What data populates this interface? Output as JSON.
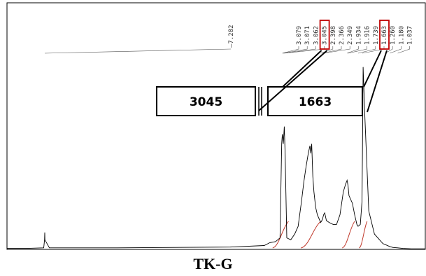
{
  "caption": "TK-G",
  "chart_data": {
    "type": "line",
    "title": "TK-G",
    "xlabel": "",
    "ylabel": "",
    "x_reversed": true,
    "xlim": [
      7.95,
      0.55
    ],
    "ylim": [
      0,
      1
    ],
    "series": [
      {
        "name": "",
        "x": [
          7.95,
          7.6,
          7.3,
          7.285,
          7.282,
          7.279,
          7.2,
          6.0,
          4.0,
          3.4,
          3.3,
          3.2,
          3.12,
          3.09,
          3.079,
          3.071,
          3.062,
          3.045,
          3.03,
          3.0,
          2.93,
          2.86,
          2.8,
          2.74,
          2.7,
          2.66,
          2.62,
          2.59,
          2.575,
          2.56,
          2.54,
          2.52,
          2.49,
          2.46,
          2.4,
          2.38,
          2.366,
          2.349,
          2.33,
          2.3,
          2.25,
          2.18,
          2.12,
          2.06,
          2.0,
          1.96,
          1.934,
          1.916,
          1.9,
          1.84,
          1.8,
          1.76,
          1.739,
          1.7,
          1.67,
          1.663,
          1.65,
          1.62,
          1.55,
          1.45,
          1.3,
          1.26,
          1.18,
          1.12,
          1.037,
          0.95,
          0.8,
          0.55
        ],
        "y": [
          0.005,
          0.005,
          0.008,
          0.05,
          0.088,
          0.05,
          0.008,
          0.008,
          0.012,
          0.02,
          0.035,
          0.04,
          0.06,
          0.55,
          0.6,
          0.58,
          0.55,
          0.64,
          0.5,
          0.06,
          0.05,
          0.08,
          0.12,
          0.25,
          0.35,
          0.43,
          0.5,
          0.54,
          0.5,
          0.55,
          0.38,
          0.3,
          0.22,
          0.18,
          0.14,
          0.15,
          0.16,
          0.18,
          0.19,
          0.15,
          0.14,
          0.13,
          0.13,
          0.18,
          0.3,
          0.34,
          0.36,
          0.33,
          0.28,
          0.24,
          0.18,
          0.13,
          0.12,
          0.13,
          0.25,
          0.48,
          0.95,
          0.7,
          0.2,
          0.08,
          0.03,
          0.025,
          0.015,
          0.01,
          0.008,
          0.005,
          0.003,
          0.003
        ]
      }
    ],
    "peak_labels": [
      "7.282",
      "3.079",
      "3.071",
      "3.062",
      "3.045",
      "2.398",
      "2.366",
      "2.349",
      "1.934",
      "1.916",
      "1.739",
      "1.663",
      "1.260",
      "1.180",
      "1.037"
    ],
    "highlighted_peaks": [
      "3.045",
      "1.663"
    ],
    "callouts": [
      "3045",
      "1663"
    ],
    "colors": {
      "trace": "#000000",
      "integral": "#c0392b",
      "highlight": "#c00000"
    }
  }
}
